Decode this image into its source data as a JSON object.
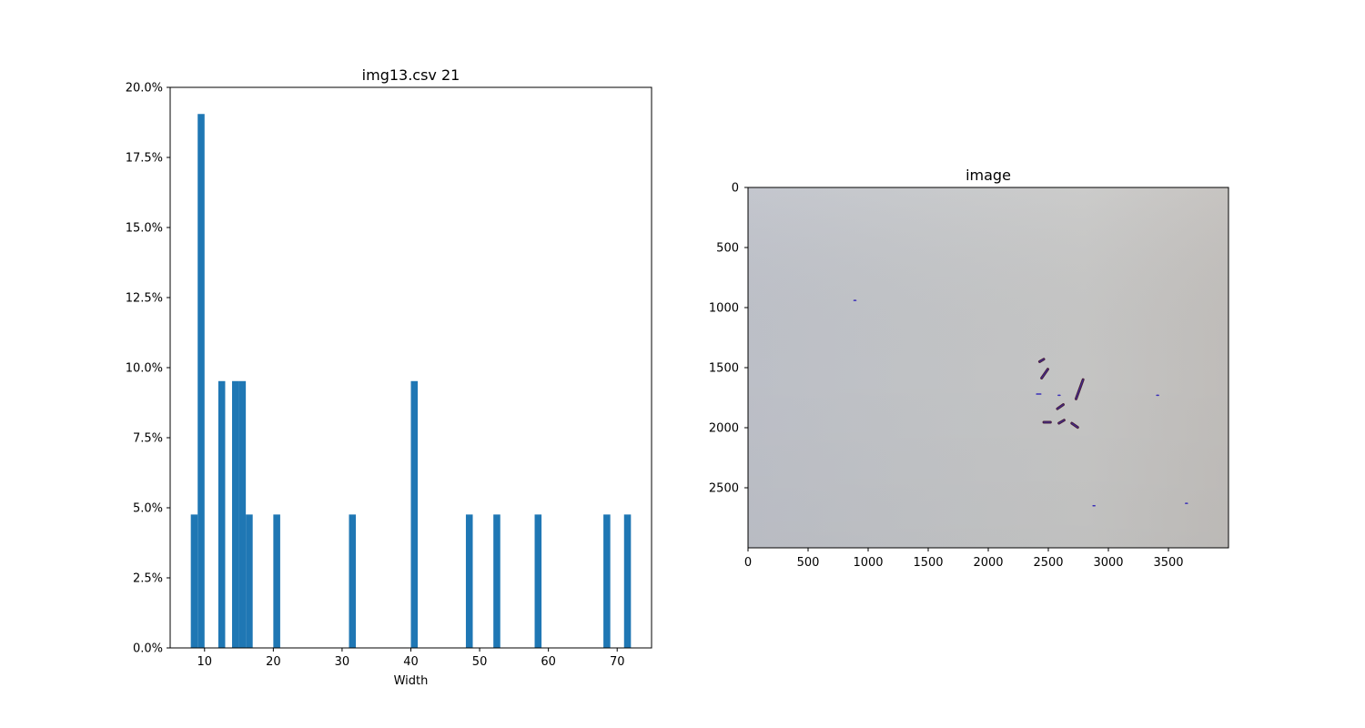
{
  "colors": {
    "bar": "#1f77b4",
    "axis": "#000000",
    "background": "#ffffff",
    "photo_background": "#c6c7c8",
    "photo_marks": "#3a2fb8",
    "photo_marks_dark": "#4a1f3a"
  },
  "chart_data": [
    {
      "type": "bar",
      "title": "img13.csv 21",
      "xlabel": "Width",
      "ylabel": "",
      "xlim": [
        5,
        75
      ],
      "ylim": [
        0,
        20
      ],
      "grid": false,
      "bar_width": 1.0,
      "x_ticks": [
        10,
        20,
        30,
        40,
        50,
        60,
        70
      ],
      "x_tick_labels": [
        "10",
        "20",
        "30",
        "40",
        "50",
        "60",
        "70"
      ],
      "y_ticks": [
        0,
        2.5,
        5,
        7.5,
        10,
        12.5,
        15,
        17.5,
        20
      ],
      "y_tick_labels": [
        "0.0%",
        "2.5%",
        "5.0%",
        "7.5%",
        "10.0%",
        "12.5%",
        "15.0%",
        "17.5%",
        "20.0%"
      ],
      "bars": [
        {
          "x": 8.5,
          "value": 4.76
        },
        {
          "x": 9.5,
          "value": 19.05
        },
        {
          "x": 12.5,
          "value": 9.52
        },
        {
          "x": 14.5,
          "value": 9.52
        },
        {
          "x": 15.5,
          "value": 9.52
        },
        {
          "x": 16.5,
          "value": 4.76
        },
        {
          "x": 20.5,
          "value": 4.76
        },
        {
          "x": 31.5,
          "value": 4.76
        },
        {
          "x": 40.5,
          "value": 9.52
        },
        {
          "x": 48.5,
          "value": 4.76
        },
        {
          "x": 52.5,
          "value": 4.76
        },
        {
          "x": 58.5,
          "value": 4.76
        },
        {
          "x": 68.5,
          "value": 4.76
        },
        {
          "x": 71.5,
          "value": 4.76
        }
      ]
    },
    {
      "type": "image",
      "title": "image",
      "xlim": [
        0,
        4000
      ],
      "ylim": [
        3000,
        0
      ],
      "x_ticks": [
        0,
        500,
        1000,
        1500,
        2000,
        2500,
        3000,
        3500
      ],
      "x_tick_labels": [
        "0",
        "500",
        "1000",
        "1500",
        "2000",
        "2500",
        "3000",
        "3500"
      ],
      "y_ticks": [
        0,
        500,
        1000,
        1500,
        2000,
        2500
      ],
      "y_tick_labels": [
        "0",
        "500",
        "1000",
        "1500",
        "2000",
        "2500"
      ],
      "marks": [
        {
          "x": 890,
          "y": 940,
          "len": 12,
          "angle": 0,
          "tone": "blue"
        },
        {
          "x": 2445,
          "y": 1440,
          "len": 40,
          "angle": -30,
          "tone": "dark"
        },
        {
          "x": 2470,
          "y": 1550,
          "len": 90,
          "angle": -55,
          "tone": "dark"
        },
        {
          "x": 2420,
          "y": 1720,
          "len": 35,
          "angle": 0,
          "tone": "blue"
        },
        {
          "x": 2590,
          "y": 1730,
          "len": 15,
          "angle": 0,
          "tone": "blue"
        },
        {
          "x": 2760,
          "y": 1680,
          "len": 170,
          "angle": -70,
          "tone": "dark"
        },
        {
          "x": 2600,
          "y": 1825,
          "len": 60,
          "angle": -35,
          "tone": "dark"
        },
        {
          "x": 2490,
          "y": 1955,
          "len": 55,
          "angle": 0,
          "tone": "dark"
        },
        {
          "x": 2610,
          "y": 1950,
          "len": 50,
          "angle": -30,
          "tone": "dark"
        },
        {
          "x": 2720,
          "y": 1980,
          "len": 60,
          "angle": 35,
          "tone": "dark"
        },
        {
          "x": 3410,
          "y": 1730,
          "len": 12,
          "angle": 0,
          "tone": "blue"
        },
        {
          "x": 2880,
          "y": 2650,
          "len": 12,
          "angle": 0,
          "tone": "blue"
        },
        {
          "x": 3650,
          "y": 2630,
          "len": 12,
          "angle": 0,
          "tone": "blue"
        }
      ]
    }
  ]
}
